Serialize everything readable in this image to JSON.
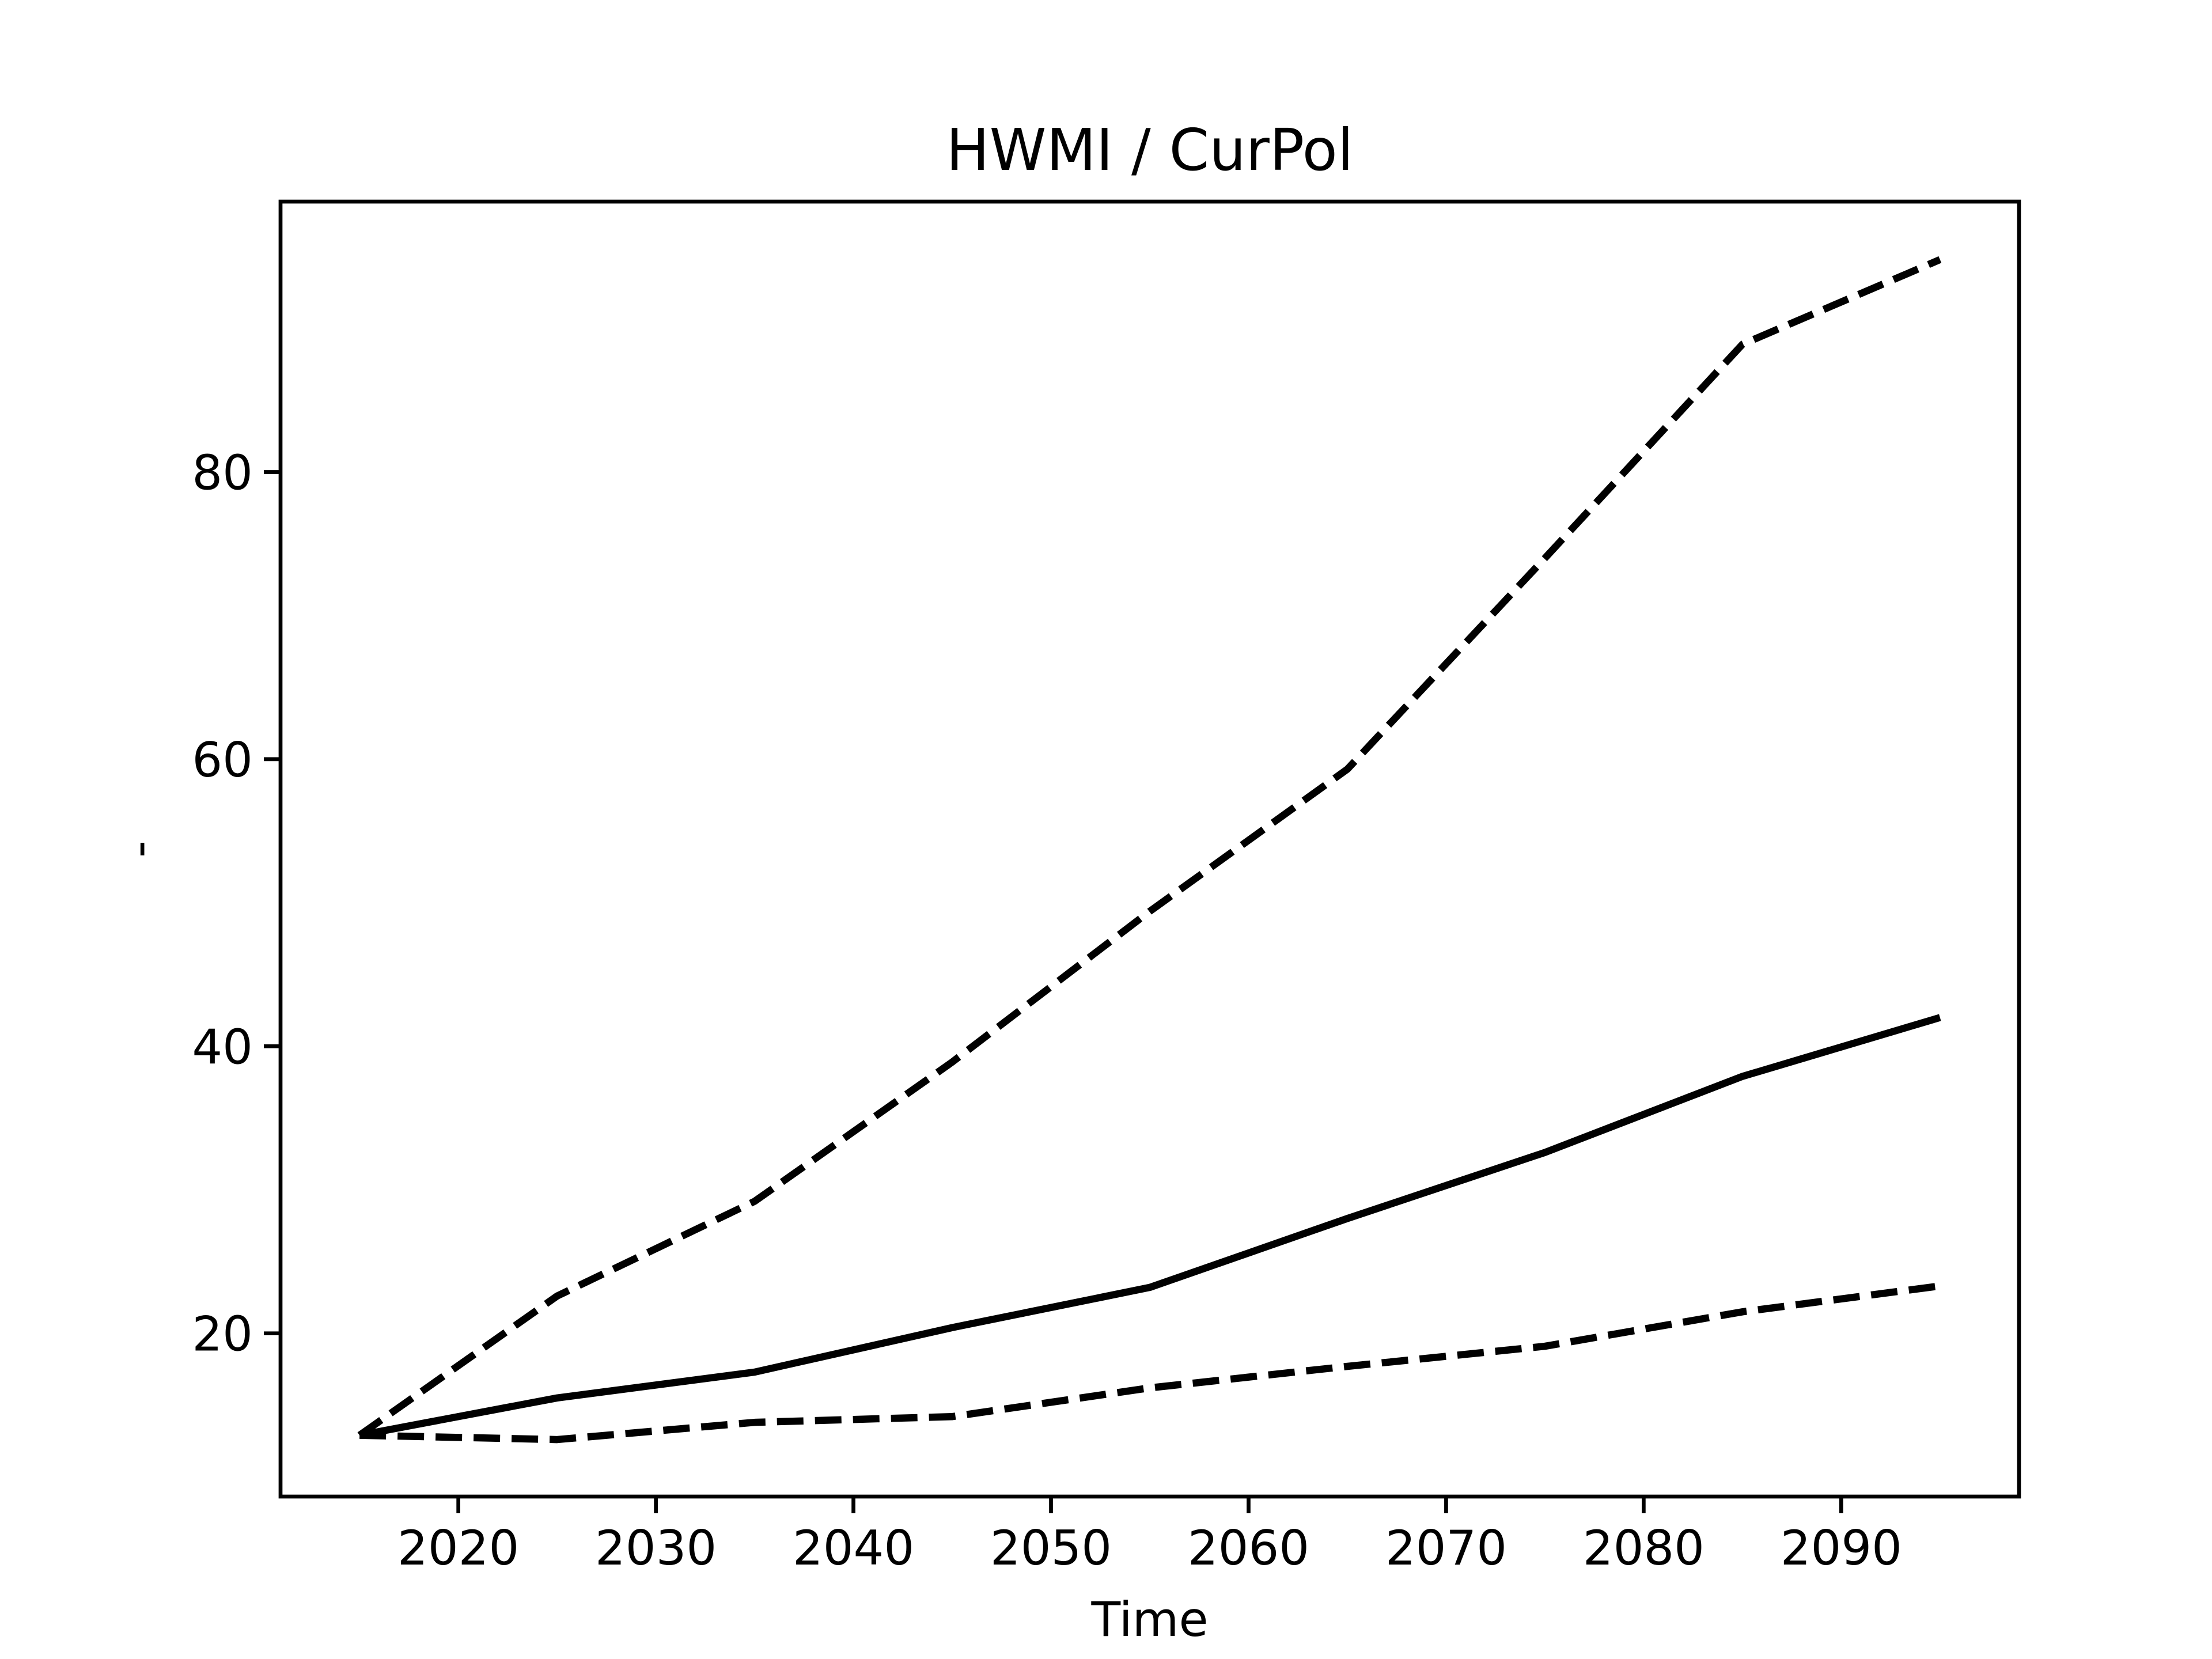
{
  "chart_data": {
    "type": "line",
    "title": "HWMI / CurPol",
    "x_label": "Time",
    "y_label": "-",
    "x": [
      2015,
      2025,
      2035,
      2045,
      2055,
      2065,
      2075,
      2085,
      2095
    ],
    "series": [
      {
        "color": "#000000",
        "linestyle": "solid",
        "values": [
          12.9,
          15.5,
          17.3,
          20.4,
          23.2,
          28.0,
          32.6,
          37.9,
          42.0
        ]
      },
      {
        "color": "#000000",
        "linestyle": "dashed",
        "values": [
          12.9,
          22.6,
          29.2,
          38.9,
          49.4,
          59.3,
          74.0,
          88.9,
          94.8
        ]
      },
      {
        "color": "#000000",
        "linestyle": "dashed",
        "values": [
          12.9,
          12.6,
          13.8,
          14.2,
          16.2,
          17.7,
          19.1,
          21.5,
          23.3
        ]
      }
    ],
    "xlim": [
      2011,
      2099
    ],
    "xticks": [
      2020,
      2030,
      2040,
      2050,
      2060,
      2070,
      2080,
      2090
    ],
    "ylim": [
      8.63,
      98.84
    ],
    "yticks": [
      20,
      40,
      60,
      80
    ],
    "grid": false
  }
}
